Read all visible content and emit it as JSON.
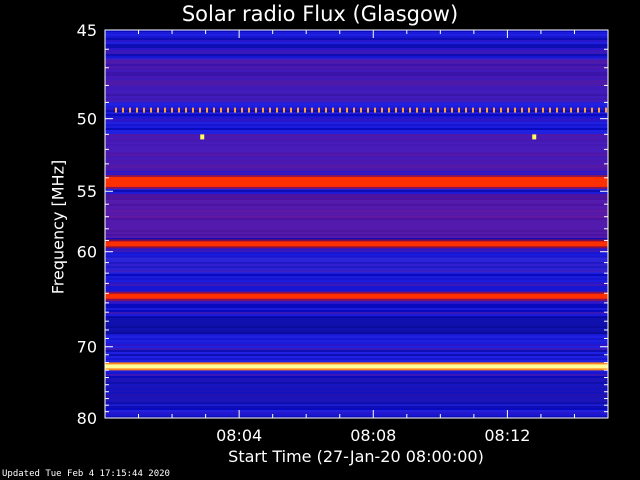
{
  "chart_data": {
    "type": "heatmap",
    "title": "Solar radio Flux (Glasgow)",
    "ylabel": "Frequency [MHz]",
    "xlabel": "Start Time (27-Jan-20 08:00:00)",
    "y_ticks": [
      "45",
      "50",
      "55",
      "60",
      "70",
      "80"
    ],
    "y_tick_values": [
      45,
      50,
      55,
      60,
      70,
      80
    ],
    "x_ticks": [
      "08:04",
      "08:08",
      "08:12"
    ],
    "x_tick_minutes": [
      4,
      8,
      12
    ],
    "x_range_minutes": [
      0,
      15
    ],
    "y_range_mhz": [
      45,
      80
    ],
    "bands": [
      {
        "freq_mhz": 49.5,
        "intensity": "high",
        "pattern": "dotted"
      },
      {
        "freq_mhz": 54.3,
        "intensity": "high"
      },
      {
        "freq_mhz": 59.3,
        "intensity": "high"
      },
      {
        "freq_mhz": 64.3,
        "intensity": "high"
      },
      {
        "freq_mhz": 72.5,
        "intensity": "saturated"
      }
    ],
    "colors": {
      "background": "#1515cc",
      "low": "#2020e0",
      "medium": "#7a1aa0",
      "high": "#ff3000",
      "saturated": "#ffff99"
    }
  },
  "footer": {
    "updated": "Updated Tue Feb  4 17:15:44 2020"
  }
}
